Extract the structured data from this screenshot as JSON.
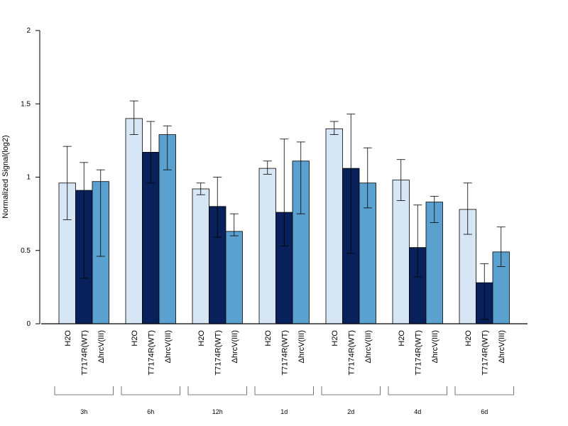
{
  "chart_data": {
    "type": "bar",
    "title": "",
    "xlabel": "",
    "ylabel": "Normalized Signal(log2)",
    "ylim": [
      0,
      2
    ],
    "yticks": [
      "0",
      "0.5",
      "1",
      "1.5",
      "2"
    ],
    "ytick_values": [
      0,
      0.5,
      1,
      1.5,
      2
    ],
    "grid": false,
    "legend": "none",
    "colors": {
      "H2O": "#d6e6f5",
      "T7174R(WT)": "#08215a",
      "ΔhrcV(III)": "#5ba1d0"
    },
    "bar_labels": [
      "H2O",
      "T7174R(WT)",
      "ΔhrcV(III)"
    ],
    "groups": [
      {
        "label": "3h",
        "bars": [
          {
            "name": "H2O",
            "value": 0.96,
            "err_low": 0.71,
            "err_high": 1.21
          },
          {
            "name": "T7174R(WT)",
            "value": 0.91,
            "err_low": 0.31,
            "err_high": 1.1
          },
          {
            "name": "ΔhrcV(III)",
            "value": 0.97,
            "err_low": 0.46,
            "err_high": 1.05
          }
        ]
      },
      {
        "label": "6h",
        "bars": [
          {
            "name": "H2O",
            "value": 1.4,
            "err_low": 1.29,
            "err_high": 1.52
          },
          {
            "name": "T7174R(WT)",
            "value": 1.17,
            "err_low": 0.96,
            "err_high": 1.38
          },
          {
            "name": "ΔhrcV(III)",
            "value": 1.29,
            "err_low": 1.05,
            "err_high": 1.35
          }
        ]
      },
      {
        "label": "12h",
        "bars": [
          {
            "name": "H2O",
            "value": 0.92,
            "err_low": 0.88,
            "err_high": 0.96
          },
          {
            "name": "T7174R(WT)",
            "value": 0.8,
            "err_low": 0.59,
            "err_high": 1.0
          },
          {
            "name": "ΔhrcV(III)",
            "value": 0.63,
            "err_low": 0.6,
            "err_high": 0.75
          }
        ]
      },
      {
        "label": "1d",
        "bars": [
          {
            "name": "H2O",
            "value": 1.06,
            "err_low": 1.02,
            "err_high": 1.11
          },
          {
            "name": "T7174R(WT)",
            "value": 0.76,
            "err_low": 0.53,
            "err_high": 1.26
          },
          {
            "name": "ΔhrcV(III)",
            "value": 1.11,
            "err_low": 0.75,
            "err_high": 1.24
          }
        ]
      },
      {
        "label": "2d",
        "bars": [
          {
            "name": "H2O",
            "value": 1.33,
            "err_low": 1.29,
            "err_high": 1.38
          },
          {
            "name": "T7174R(WT)",
            "value": 1.06,
            "err_low": 0.48,
            "err_high": 1.43
          },
          {
            "name": "ΔhrcV(III)",
            "value": 0.96,
            "err_low": 0.79,
            "err_high": 1.2
          }
        ]
      },
      {
        "label": "4d",
        "bars": [
          {
            "name": "H2O",
            "value": 0.98,
            "err_low": 0.84,
            "err_high": 1.12
          },
          {
            "name": "T7174R(WT)",
            "value": 0.52,
            "err_low": 0.32,
            "err_high": 0.81
          },
          {
            "name": "ΔhrcV(III)",
            "value": 0.83,
            "err_low": 0.69,
            "err_high": 0.87
          }
        ]
      },
      {
        "label": "6d",
        "bars": [
          {
            "name": "H2O",
            "value": 0.78,
            "err_low": 0.61,
            "err_high": 0.96
          },
          {
            "name": "T7174R(WT)",
            "value": 0.28,
            "err_low": 0.03,
            "err_high": 0.41
          },
          {
            "name": "ΔhrcV(III)",
            "value": 0.49,
            "err_low": 0.39,
            "err_high": 0.66
          }
        ]
      }
    ]
  }
}
